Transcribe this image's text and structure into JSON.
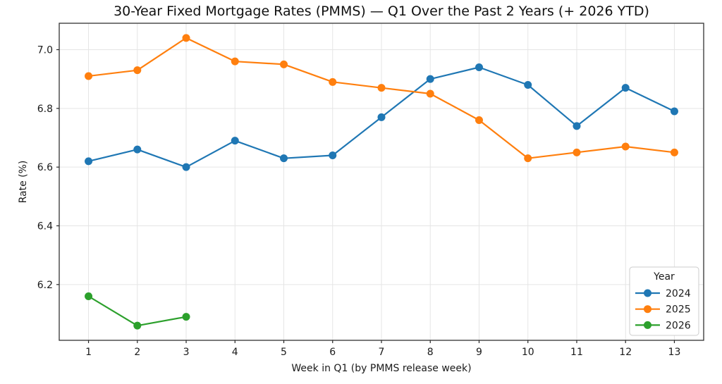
{
  "chart_data": {
    "type": "line",
    "title": "30-Year Fixed Mortgage Rates (PMMS) — Q1 Over the Past 2 Years (+ 2026 YTD)",
    "xlabel": "Week in Q1 (by PMMS release week)",
    "ylabel": "Rate (%)",
    "x": [
      1,
      2,
      3,
      4,
      5,
      6,
      7,
      8,
      9,
      10,
      11,
      12,
      13
    ],
    "xtick_labels": [
      "1",
      "2",
      "3",
      "4",
      "5",
      "6",
      "7",
      "8",
      "9",
      "10",
      "11",
      "12",
      "13"
    ],
    "yticks": [
      6.2,
      6.4,
      6.6,
      6.8,
      7.0
    ],
    "ytick_labels": [
      "6.2",
      "6.4",
      "6.6",
      "6.8",
      "7.0"
    ],
    "xlim": [
      0.4,
      13.6
    ],
    "ylim": [
      6.01,
      7.09
    ],
    "grid": true,
    "legend": {
      "title": "Year",
      "position": "lower right"
    },
    "series": [
      {
        "name": "2024",
        "color": "#1f77b4",
        "values": [
          6.62,
          6.66,
          6.6,
          6.69,
          6.63,
          6.64,
          6.77,
          6.9,
          6.94,
          6.88,
          6.74,
          6.87,
          6.79
        ]
      },
      {
        "name": "2025",
        "color": "#ff7f0e",
        "values": [
          6.91,
          6.93,
          7.04,
          6.96,
          6.95,
          6.89,
          6.87,
          6.85,
          6.76,
          6.63,
          6.65,
          6.67,
          6.65
        ]
      },
      {
        "name": "2026",
        "color": "#2ca02c",
        "values": [
          6.16,
          6.06,
          6.09
        ]
      }
    ]
  }
}
